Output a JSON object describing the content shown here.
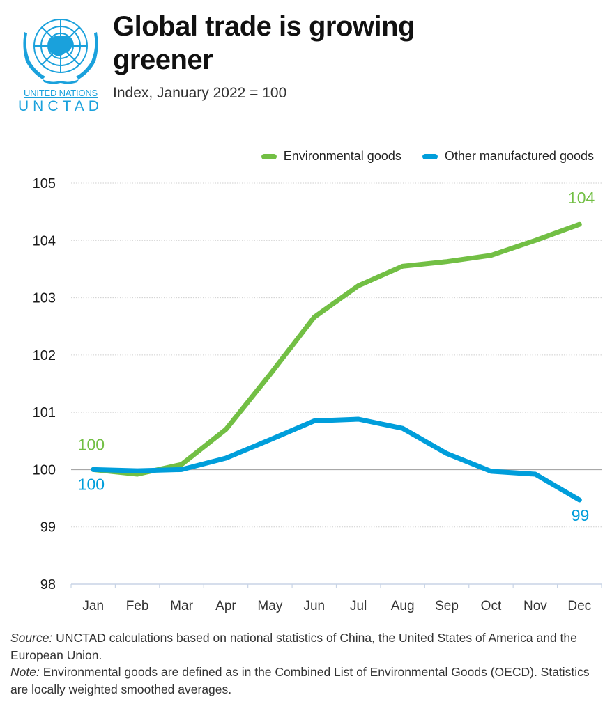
{
  "header": {
    "title": "Global trade is growing greener",
    "subtitle": "Index, January 2022 = 100",
    "logo": {
      "icon": "un-emblem-icon",
      "line1": "UNITED NATIONS",
      "line2": "UNCTAD",
      "color": "#1aa1dc"
    }
  },
  "footer": {
    "source_label": "Source:",
    "source_text": " UNCTAD calculations based on national statistics of China, the United States of America and the European Union.",
    "note_label": "Note:",
    "note_text": " Environmental goods are defined as in the Combined List of Environmental Goods (OECD). Statistics are locally weighted smoothed averages."
  },
  "chart_data": {
    "type": "line",
    "title": "Global trade is growing greener",
    "subtitle": "Index, January 2022 = 100",
    "xlabel": "",
    "ylabel": "",
    "categories": [
      "Jan",
      "Feb",
      "Mar",
      "Apr",
      "May",
      "Jun",
      "Jul",
      "Aug",
      "Sep",
      "Oct",
      "Nov",
      "Dec"
    ],
    "ylim": [
      98,
      105
    ],
    "yticks": [
      98,
      99,
      100,
      101,
      102,
      103,
      104,
      105
    ],
    "baseline": 100,
    "grid": true,
    "legend_position": "top-right",
    "series": [
      {
        "name": "Environmental goods",
        "color": "#72bf44",
        "values": [
          100.0,
          99.92,
          100.09,
          100.7,
          101.66,
          102.66,
          103.21,
          103.55,
          103.63,
          103.74,
          104.0,
          104.28
        ],
        "start_label": "100",
        "end_label": "104"
      },
      {
        "name": "Other manufactured goods",
        "color": "#009edb",
        "values": [
          100.0,
          99.98,
          100.0,
          100.2,
          100.52,
          100.85,
          100.88,
          100.72,
          100.28,
          99.97,
          99.92,
          99.47
        ],
        "start_label": "100",
        "end_label": "99"
      }
    ]
  }
}
